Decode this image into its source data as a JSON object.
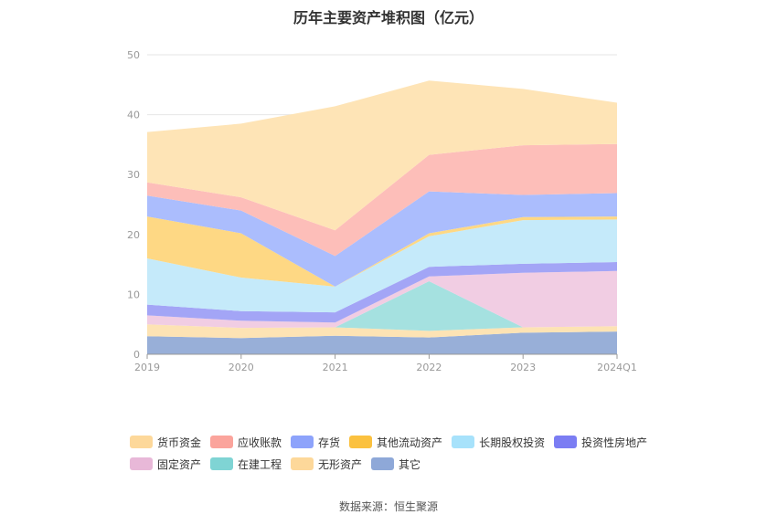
{
  "chart_data": {
    "type": "area",
    "stacked": true,
    "title": "历年主要资产堆积图（亿元）",
    "categories": [
      "2019",
      "2020",
      "2021",
      "2022",
      "2023",
      "2024Q1"
    ],
    "ylim": [
      0,
      50
    ],
    "yticks": [
      0,
      10,
      20,
      30,
      40,
      50
    ],
    "grid": true,
    "legend_position": "bottom",
    "series": [
      {
        "name": "其它",
        "color": "#98afd8",
        "values": [
          3.0,
          2.7,
          3.1,
          2.8,
          3.6,
          3.8
        ]
      },
      {
        "name": "无形资产",
        "color": "#fde3b4",
        "values": [
          2.0,
          1.7,
          1.4,
          1.1,
          0.9,
          0.9
        ]
      },
      {
        "name": "在建工程",
        "color": "#a5e1e0",
        "values": [
          0.0,
          0.0,
          0.0,
          8.3,
          0.0,
          0.0
        ]
      },
      {
        "name": "固定资产",
        "color": "#f1cde3",
        "values": [
          1.5,
          1.2,
          0.8,
          0.8,
          9.1,
          9.2
        ]
      },
      {
        "name": "投资性房地产",
        "color": "#a3a5f6",
        "values": [
          1.8,
          1.6,
          1.7,
          1.6,
          1.5,
          1.5
        ]
      },
      {
        "name": "长期股权投资",
        "color": "#c5eafa",
        "values": [
          7.7,
          5.6,
          4.3,
          5.1,
          7.3,
          7.1
        ]
      },
      {
        "name": "其他流动资产",
        "color": "#fed884",
        "values": [
          7.0,
          7.4,
          0.0,
          0.5,
          0.5,
          0.5
        ]
      },
      {
        "name": "存货",
        "color": "#abbdfd",
        "values": [
          3.5,
          3.8,
          5.1,
          7.0,
          3.7,
          3.9
        ]
      },
      {
        "name": "应收账款",
        "color": "#fdbeb9",
        "values": [
          2.2,
          2.2,
          4.3,
          6.1,
          8.3,
          8.2
        ]
      },
      {
        "name": "货币资金",
        "color": "#fee4b6",
        "values": [
          8.4,
          12.3,
          20.7,
          12.4,
          9.4,
          6.9
        ]
      }
    ]
  },
  "legend": [
    [
      {
        "label": "货币资金",
        "color": "#fdd89a"
      },
      {
        "label": "应收账款",
        "color": "#fba49c"
      },
      {
        "label": "存货",
        "color": "#8da3fb"
      },
      {
        "label": "其他流动资产",
        "color": "#fbc13f"
      },
      {
        "label": "长期股权投资",
        "color": "#a7e2fb"
      },
      {
        "label": "投资性房地产",
        "color": "#7b7df3"
      }
    ],
    [
      {
        "label": "固定资产",
        "color": "#e8b8d8"
      },
      {
        "label": "在建工程",
        "color": "#7fd4d4"
      },
      {
        "label": "无形资产",
        "color": "#fdd89a"
      },
      {
        "label": "其它",
        "color": "#8ea8d8"
      }
    ]
  ],
  "source": "数据来源：恒生聚源"
}
